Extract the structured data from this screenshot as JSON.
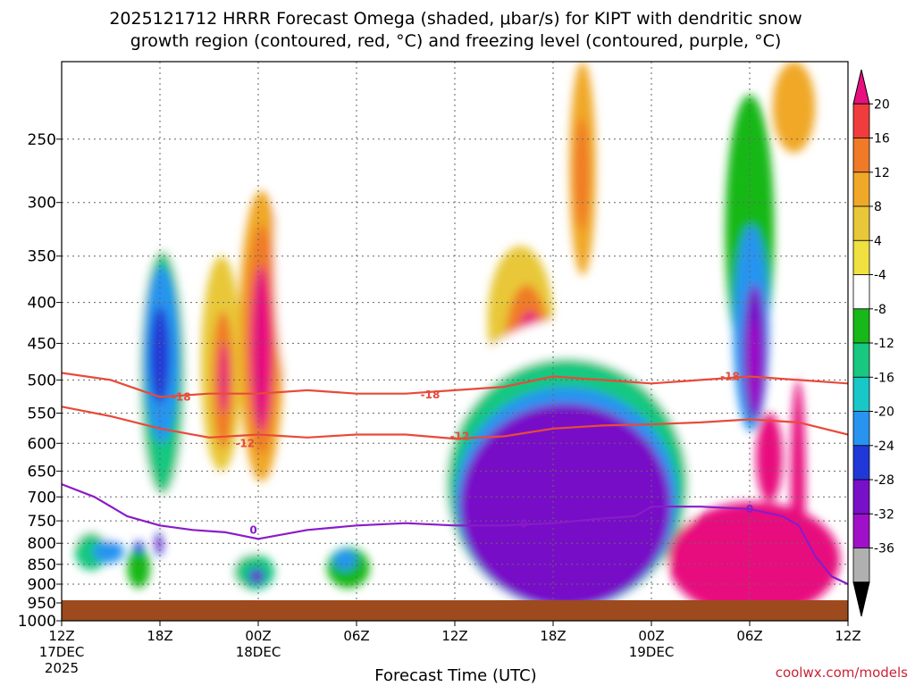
{
  "title_line1": "2025121712 HRRR Forecast Omega (shaded, μbar/s) for KIPT with dendritic snow",
  "title_line2": "growth region (contoured, red, °C) and freezing level (contoured, purple, °C)",
  "credit": "coolwx.com/models",
  "colors": {
    "ground": "#9c4a1e",
    "dgz_contour": "#e84a3a",
    "freezing_contour": "#8a1bc9",
    "grid": "#666666"
  },
  "chart_data": {
    "type": "heatmap",
    "title": "2025121712 HRRR Forecast Omega (shaded, μbar/s) for KIPT with dendritic snow growth region (contoured, red, °C) and freezing level (contoured, purple, °C)",
    "xlabel": "Forecast Time (UTC)",
    "ylabel": "",
    "x_range_hours": [
      0,
      48
    ],
    "x_ticks": [
      {
        "hour": 0,
        "label": "12Z",
        "sub1": "17DEC",
        "sub2": "2025"
      },
      {
        "hour": 6,
        "label": "18Z",
        "sub1": "",
        "sub2": ""
      },
      {
        "hour": 12,
        "label": "00Z",
        "sub1": "18DEC",
        "sub2": ""
      },
      {
        "hour": 18,
        "label": "06Z",
        "sub1": "",
        "sub2": ""
      },
      {
        "hour": 24,
        "label": "12Z",
        "sub1": "",
        "sub2": ""
      },
      {
        "hour": 30,
        "label": "18Z",
        "sub1": "",
        "sub2": ""
      },
      {
        "hour": 36,
        "label": "00Z",
        "sub1": "19DEC",
        "sub2": ""
      },
      {
        "hour": 42,
        "label": "06Z",
        "sub1": "",
        "sub2": ""
      },
      {
        "hour": 48,
        "label": "12Z",
        "sub1": "",
        "sub2": ""
      }
    ],
    "y_ticks_hpa": [
      "250",
      "300",
      "350",
      "400",
      "450",
      "500",
      "550",
      "600",
      "650",
      "700",
      "750",
      "800",
      "850",
      "900",
      "950",
      "1000"
    ],
    "y_range_hpa": [
      1000,
      200
    ],
    "grid": true,
    "colorbar": {
      "ticks": [
        "20",
        "16",
        "12",
        "8",
        "4",
        "-4",
        "-8",
        "-12",
        "-16",
        "-20",
        "-24",
        "-28",
        "-32",
        "-36"
      ],
      "colors": [
        "#e8107e",
        "#f03c3c",
        "#f07a28",
        "#f0a828",
        "#e8c838",
        "#f0e040",
        "#ffffff",
        "#18b818",
        "#18c880",
        "#18c8c8",
        "#2894f0",
        "#2038d8",
        "#7810c8",
        "#a010c8",
        "#b0b0b0",
        "#000000"
      ]
    },
    "omega_cells": [
      {
        "t0": 0.3,
        "t1": 3.5,
        "p": 700,
        "dp": 330,
        "v": -8
      },
      {
        "t0": 0.8,
        "t1": 2.8,
        "p": 820,
        "dp": 90,
        "v": -16
      },
      {
        "t0": 1.9,
        "t1": 3.8,
        "p": 820,
        "dp": 55,
        "v": -24
      },
      {
        "t0": 4.0,
        "t1": 5.4,
        "p": 860,
        "dp": 100,
        "v": -12
      },
      {
        "t0": 4.4,
        "t1": 5.0,
        "p": 810,
        "dp": 30,
        "v": -28
      },
      {
        "t0": 4.5,
        "t1": 7.8,
        "p": 540,
        "dp": 480,
        "v": -8
      },
      {
        "t0": 4.8,
        "t1": 7.5,
        "p": 520,
        "dp": 350,
        "v": -16
      },
      {
        "t0": 5.0,
        "t1": 7.2,
        "p": 480,
        "dp": 240,
        "v": -24
      },
      {
        "t0": 5.4,
        "t1": 6.6,
        "p": 470,
        "dp": 130,
        "v": -28
      },
      {
        "t0": 5.7,
        "t1": 6.2,
        "p": 800,
        "dp": 60,
        "v": -28
      },
      {
        "t0": 5.8,
        "t1": 6.1,
        "p": 800,
        "dp": 20,
        "v": -36
      },
      {
        "t0": 7.5,
        "t1": 10.0,
        "p": 270,
        "dp": 110,
        "v": -8
      },
      {
        "t0": 8.5,
        "t1": 11.0,
        "p": 500,
        "dp": 300,
        "v": 4
      },
      {
        "t0": 9.2,
        "t1": 10.5,
        "p": 510,
        "dp": 200,
        "v": 12
      },
      {
        "t0": 9.6,
        "t1": 10.2,
        "p": 500,
        "dp": 100,
        "v": 20
      },
      {
        "t0": 10.8,
        "t1": 13.6,
        "p": 480,
        "dp": 380,
        "v": 8
      },
      {
        "t0": 11.2,
        "t1": 13.2,
        "p": 470,
        "dp": 300,
        "v": 12
      },
      {
        "t0": 11.5,
        "t1": 12.9,
        "p": 470,
        "dp": 220,
        "v": 20
      },
      {
        "t0": 9.0,
        "t1": 12.0,
        "p": 850,
        "dp": 140,
        "v": -8
      },
      {
        "t0": 10.5,
        "t1": 13.0,
        "p": 870,
        "dp": 90,
        "v": -16
      },
      {
        "t0": 11.4,
        "t1": 12.4,
        "p": 880,
        "dp": 40,
        "v": -28
      },
      {
        "t0": 11.7,
        "t1": 12.1,
        "p": 880,
        "dp": 15,
        "v": -36
      },
      {
        "t0": 13.0,
        "t1": 15.5,
        "p": 380,
        "dp": 280,
        "v": -8
      },
      {
        "t0": 16.2,
        "t1": 18.8,
        "p": 860,
        "dp": 100,
        "v": -12
      },
      {
        "t0": 16.6,
        "t1": 18.0,
        "p": 840,
        "dp": 50,
        "v": -24
      },
      {
        "t0": 19.8,
        "t1": 21.2,
        "p": 520,
        "dp": 140,
        "v": -8
      },
      {
        "t0": 24.0,
        "t1": 25.2,
        "p": 230,
        "dp": 90,
        "v": -8
      },
      {
        "t0": 26.0,
        "t1": 30.0,
        "p": 430,
        "dp": 180,
        "v": 4
      },
      {
        "t0": 27.0,
        "t1": 29.8,
        "p": 480,
        "dp": 200,
        "v": 12
      },
      {
        "t0": 27.6,
        "t1": 29.6,
        "p": 490,
        "dp": 160,
        "v": 20
      },
      {
        "t0": 31.0,
        "t1": 32.6,
        "p": 280,
        "dp": 180,
        "v": 8
      },
      {
        "t0": 31.3,
        "t1": 32.2,
        "p": 280,
        "dp": 90,
        "v": 12
      },
      {
        "t0": 22.8,
        "t1": 39.0,
        "p": 700,
        "dp": 560,
        "v": -8
      },
      {
        "t0": 23.5,
        "t1": 38.2,
        "p": 720,
        "dp": 500,
        "v": -16
      },
      {
        "t0": 24.0,
        "t1": 37.6,
        "p": 740,
        "dp": 460,
        "v": -24
      },
      {
        "t0": 24.3,
        "t1": 37.2,
        "p": 750,
        "dp": 430,
        "v": -32
      },
      {
        "t0": 37.0,
        "t1": 47.5,
        "p": 850,
        "dp": 280,
        "v": 20
      },
      {
        "t0": 40.5,
        "t1": 43.5,
        "p": 350,
        "dp": 260,
        "v": -12
      },
      {
        "t0": 41.0,
        "t1": 43.2,
        "p": 450,
        "dp": 260,
        "v": -24
      },
      {
        "t0": 41.6,
        "t1": 43.0,
        "p": 470,
        "dp": 180,
        "v": -32
      },
      {
        "t0": 41.9,
        "t1": 42.6,
        "p": 480,
        "dp": 120,
        "v": -36
      },
      {
        "t0": 43.4,
        "t1": 46.0,
        "p": 210,
        "dp": 100,
        "v": 8
      },
      {
        "t0": 42.4,
        "t1": 44.0,
        "p": 630,
        "dp": 160,
        "v": 20
      },
      {
        "t0": 44.5,
        "t1": 45.4,
        "p": 700,
        "dp": 400,
        "v": 20
      }
    ],
    "dgz_minus12_contour": [
      [
        0,
        540
      ],
      [
        3,
        555
      ],
      [
        6,
        575
      ],
      [
        9,
        590
      ],
      [
        12,
        585
      ],
      [
        15,
        590
      ],
      [
        18,
        585
      ],
      [
        21,
        585
      ],
      [
        24,
        592
      ],
      [
        27,
        588
      ],
      [
        30,
        575
      ],
      [
        33,
        570
      ],
      [
        36,
        568
      ],
      [
        39,
        565
      ],
      [
        42,
        560
      ],
      [
        45,
        565
      ],
      [
        48,
        585
      ]
    ],
    "dgz_minus18_contour": [
      [
        0,
        490
      ],
      [
        3,
        500
      ],
      [
        6,
        525
      ],
      [
        9,
        520
      ],
      [
        12,
        520
      ],
      [
        15,
        515
      ],
      [
        18,
        520
      ],
      [
        21,
        520
      ],
      [
        24,
        515
      ],
      [
        27,
        510
      ],
      [
        30,
        495
      ],
      [
        33,
        500
      ],
      [
        36,
        505
      ],
      [
        39,
        500
      ],
      [
        42,
        495
      ],
      [
        45,
        500
      ],
      [
        48,
        505
      ]
    ],
    "freezing_0_contour": [
      [
        0,
        675
      ],
      [
        2,
        700
      ],
      [
        4,
        740
      ],
      [
        6,
        760
      ],
      [
        8,
        770
      ],
      [
        10,
        775
      ],
      [
        12,
        790
      ],
      [
        15,
        770
      ],
      [
        18,
        760
      ],
      [
        21,
        755
      ],
      [
        24,
        760
      ],
      [
        27,
        760
      ],
      [
        30,
        755
      ],
      [
        33,
        745
      ],
      [
        35,
        740
      ],
      [
        36,
        720
      ],
      [
        39,
        720
      ],
      [
        42,
        725
      ],
      [
        44,
        740
      ],
      [
        45,
        760
      ],
      [
        46,
        830
      ],
      [
        47,
        880
      ],
      [
        48,
        900
      ]
    ],
    "contour_labels": [
      {
        "t": 7.3,
        "p": 525,
        "text": "-18",
        "color": "red"
      },
      {
        "t": 22.5,
        "p": 522,
        "text": "-18",
        "color": "red"
      },
      {
        "t": 40.8,
        "p": 495,
        "text": "-18",
        "color": "red"
      },
      {
        "t": 11.2,
        "p": 600,
        "text": "-12",
        "color": "red"
      },
      {
        "t": 24.3,
        "p": 588,
        "text": "-12",
        "color": "red"
      },
      {
        "t": 11.7,
        "p": 770,
        "text": "0",
        "color": "purple"
      },
      {
        "t": 28.2,
        "p": 757,
        "text": "0",
        "color": "purple"
      },
      {
        "t": 42.0,
        "p": 725,
        "text": "0",
        "color": "purple"
      }
    ]
  }
}
